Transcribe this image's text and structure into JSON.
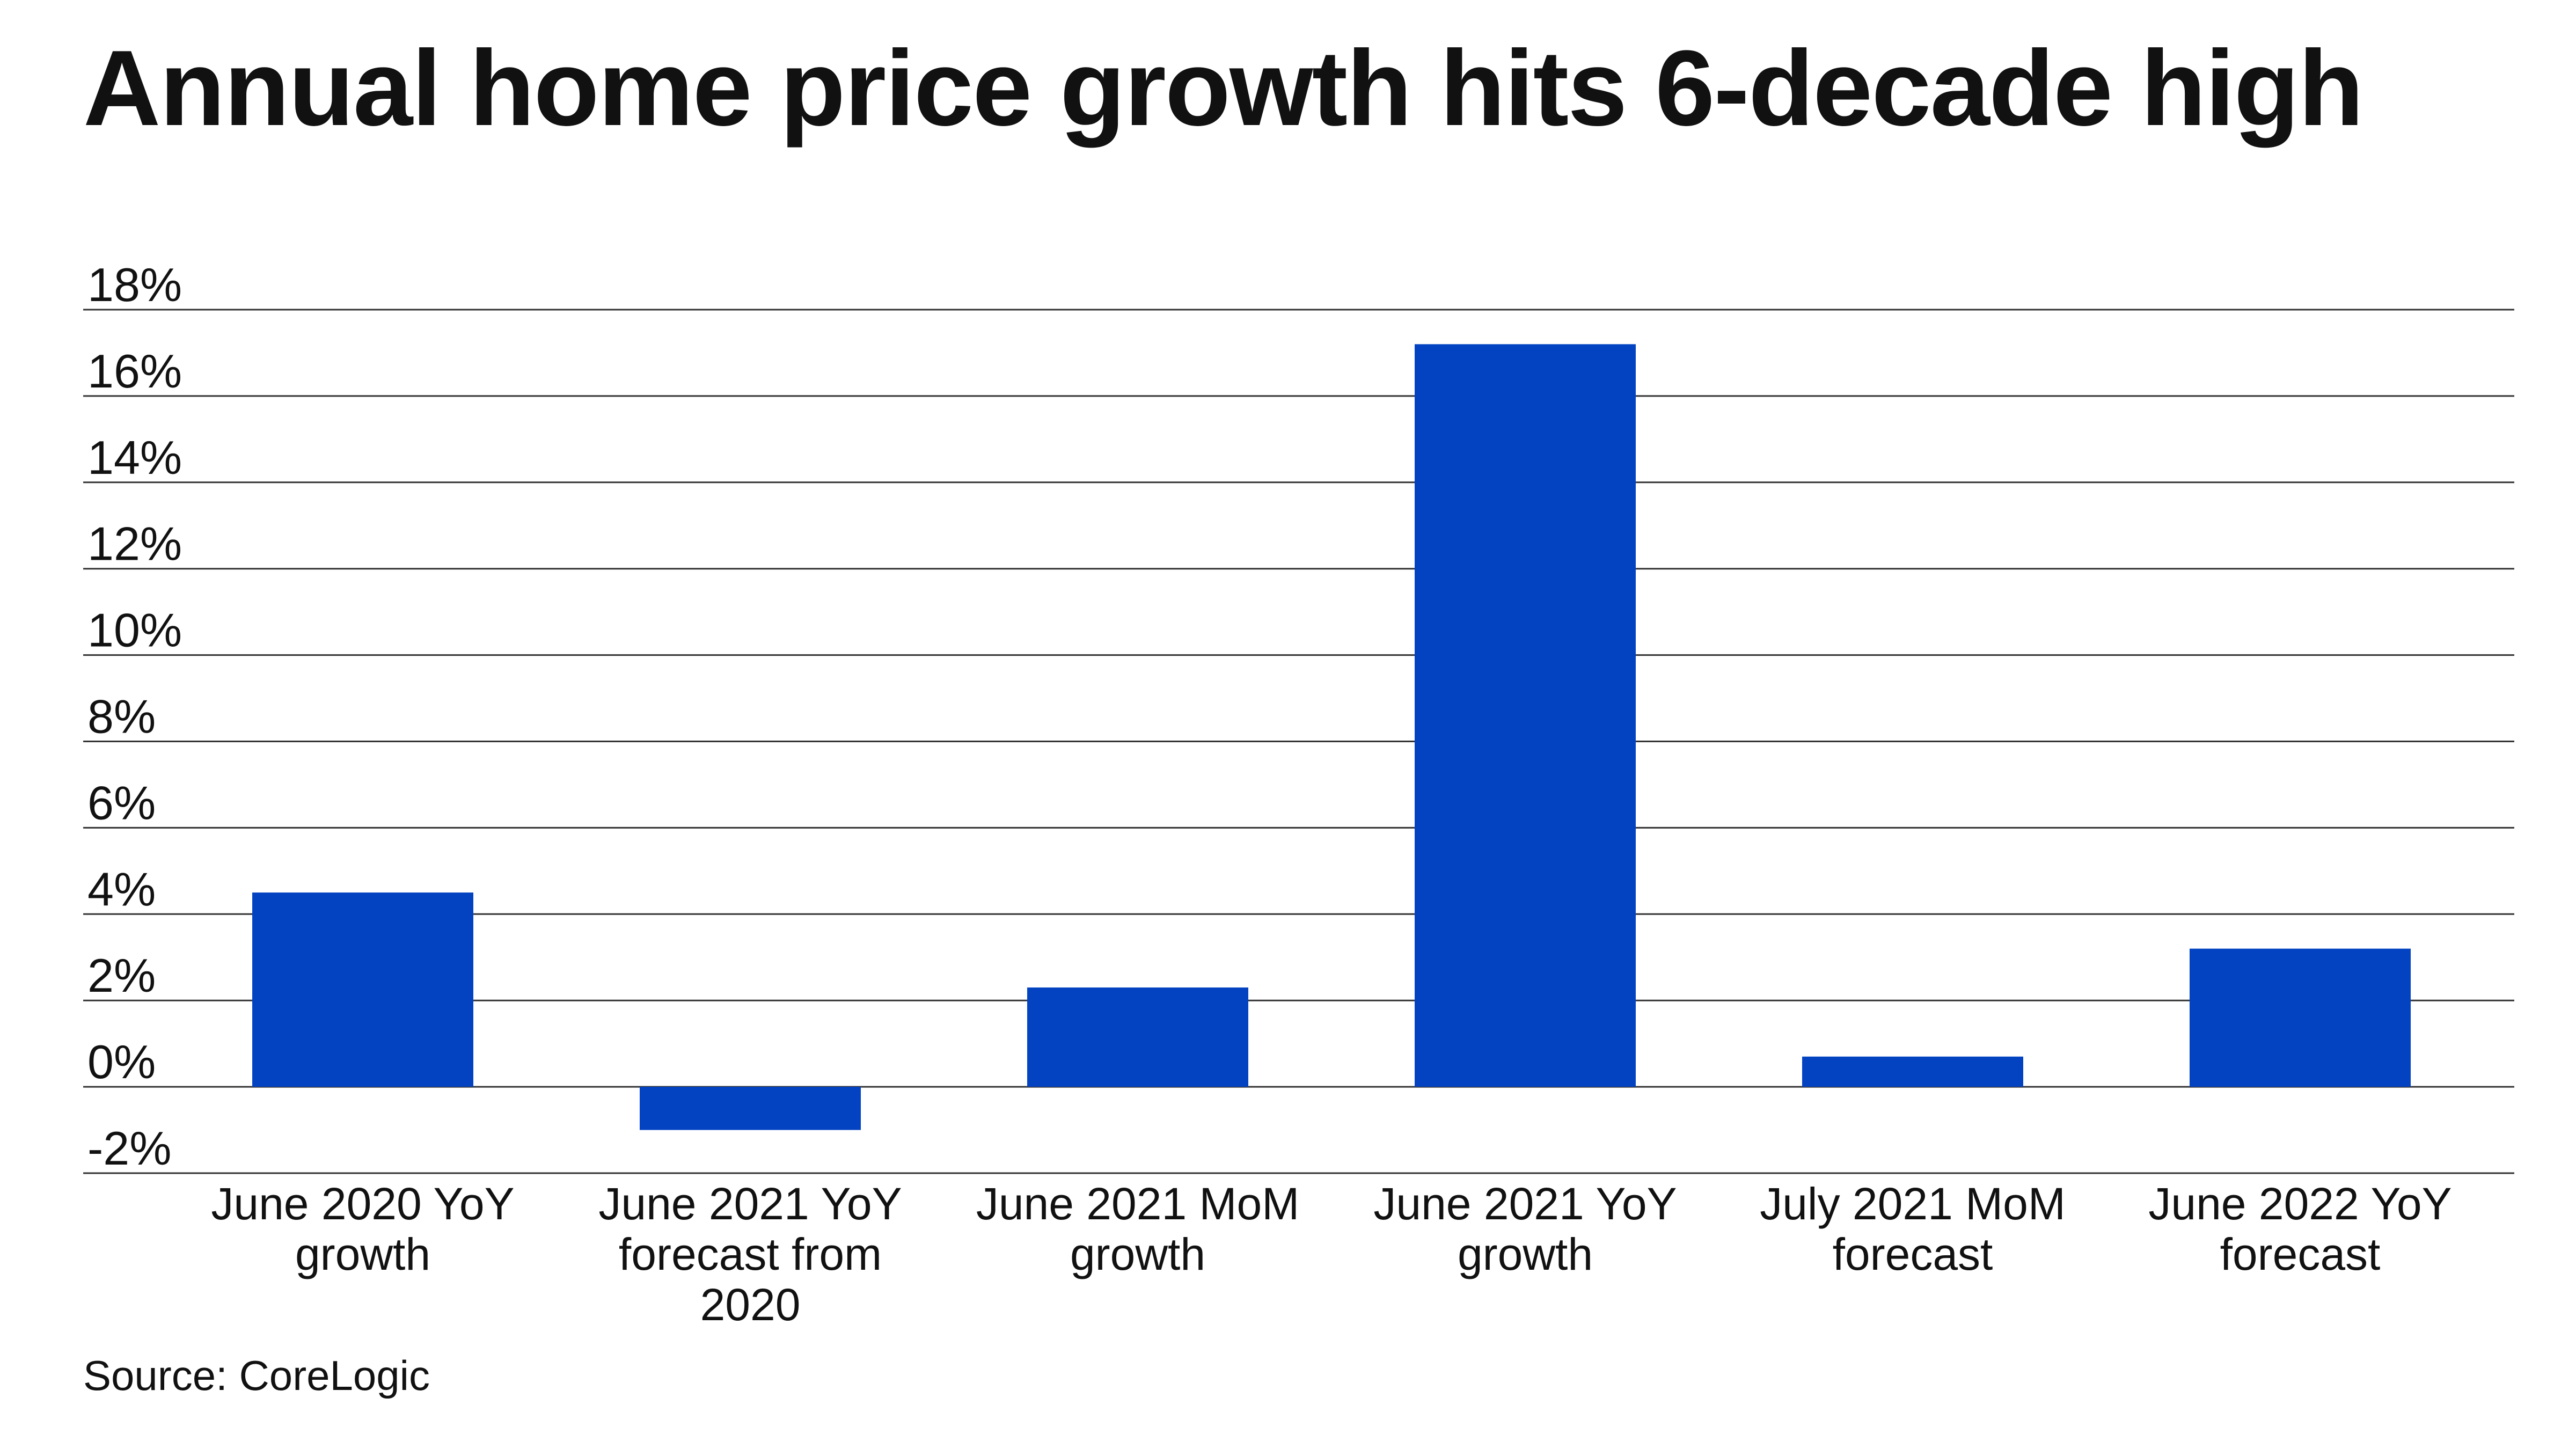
{
  "title": "Annual home price growth hits 6-decade high",
  "source": "Source: CoreLogic",
  "colors": {
    "bar": "#0343C1",
    "grid": "#333333",
    "text": "#111111"
  },
  "chart_data": {
    "type": "bar",
    "title": "Annual home price growth hits 6-decade high",
    "xlabel": "",
    "ylabel": "",
    "ylim": [
      -2,
      18
    ],
    "yticks": [
      18,
      16,
      14,
      12,
      10,
      8,
      6,
      4,
      2,
      0,
      -2
    ],
    "ytick_labels": [
      "18%",
      "16%",
      "14%",
      "12%",
      "10%",
      "8%",
      "6%",
      "4%",
      "2%",
      "0%",
      "-2%"
    ],
    "grid": true,
    "legend": "none",
    "categories": [
      [
        "June 2020 YoY",
        "growth"
      ],
      [
        "June 2021 YoY",
        "forecast from",
        "2020"
      ],
      [
        "June 2021 MoM",
        "growth"
      ],
      [
        "June 2021 YoY",
        "growth"
      ],
      [
        "July 2021 MoM",
        "forecast"
      ],
      [
        "June 2022 YoY",
        "forecast"
      ]
    ],
    "values": [
      4.5,
      -1.0,
      2.3,
      17.2,
      0.7,
      3.2
    ]
  }
}
